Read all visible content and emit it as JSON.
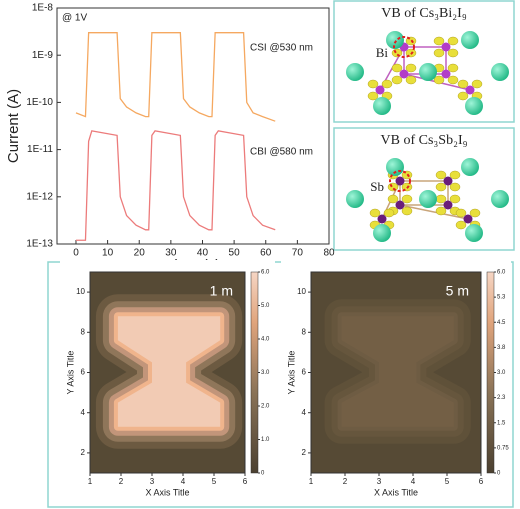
{
  "chart_data": [
    {
      "type": "line",
      "xlabel": "Time (s)",
      "ylabel": "Current (A)",
      "log_y": true,
      "annotations": [
        "@ 1V"
      ],
      "x": [
        0,
        3,
        4,
        5,
        13,
        14,
        16,
        19,
        22,
        23,
        24,
        25,
        33,
        34,
        36,
        39,
        42,
        43,
        44,
        45,
        53,
        54,
        56,
        59,
        63
      ],
      "series": [
        {
          "name": "CSI @530 nm",
          "color": "#f5a860",
          "values": [
            6e-11,
            5e-11,
            3e-09,
            3e-09,
            3e-09,
            1.2e-10,
            8e-11,
            6e-11,
            5e-11,
            5e-11,
            3e-09,
            3e-09,
            3e-09,
            1.2e-10,
            8e-11,
            6e-11,
            5e-11,
            5e-11,
            3e-09,
            3e-09,
            3e-09,
            1e-10,
            6e-11,
            5e-11,
            4e-11
          ]
        },
        {
          "name": "CBI @580 nm",
          "color": "#ec7b7b",
          "values": [
            1.2e-13,
            1.2e-13,
            1.5e-11,
            2.5e-11,
            2e-11,
            1e-12,
            4e-13,
            2.5e-13,
            2e-13,
            2e-13,
            2e-11,
            2.5e-11,
            2e-11,
            1e-12,
            4e-13,
            2.5e-13,
            2e-13,
            2e-13,
            2e-11,
            2.5e-11,
            2e-11,
            1e-12,
            4e-13,
            2.5e-13,
            2e-13
          ]
        }
      ],
      "xlim": [
        -6,
        80
      ],
      "xticks": [
        0,
        10,
        20,
        30,
        40,
        50,
        60,
        70,
        80
      ],
      "ylim": [
        1e-13,
        1e-08
      ],
      "yticks": [
        {
          "value": 1e-13,
          "label": "1E-13"
        },
        {
          "value": 1e-12,
          "label": "1E-12"
        },
        {
          "value": 1e-11,
          "label": "1E-11"
        },
        {
          "value": 1e-10,
          "label": "1E-10"
        },
        {
          "value": 1e-09,
          "label": "1E-9"
        },
        {
          "value": 1e-08,
          "label": "1E-8"
        }
      ]
    },
    {
      "type": "contour",
      "title": "1 m",
      "xlabel": "X Axis Title",
      "ylabel": "Y Axis Title",
      "xlim": [
        1,
        6
      ],
      "xticks": [
        1,
        2,
        3,
        4,
        5,
        6
      ],
      "ylim": [
        1,
        11
      ],
      "yticks": [
        2,
        4,
        6,
        8,
        10
      ],
      "clim": [
        0,
        6
      ],
      "cticks": [
        0,
        {
          "value": 1,
          "label": "1.0"
        },
        {
          "value": 2,
          "label": "2.0"
        },
        {
          "value": 3,
          "label": "3.0"
        },
        {
          "value": 4,
          "label": "4.0"
        },
        {
          "value": 5,
          "label": "5.0"
        },
        {
          "value": 6,
          "label": "6.0"
        }
      ]
    },
    {
      "type": "contour",
      "title": "5 m",
      "xlabel": "X Axis Title",
      "ylabel": "Y Axis Title",
      "xlim": [
        1,
        6
      ],
      "xticks": [
        1,
        2,
        3,
        4,
        5,
        6
      ],
      "ylim": [
        1,
        11
      ],
      "yticks": [
        2,
        4,
        6,
        8,
        10
      ],
      "clim": [
        0,
        6
      ],
      "cticks": [
        0,
        0.75,
        1.5,
        {
          "value": 2.25,
          "label": "2.3"
        },
        {
          "value": 3,
          "label": "3.0"
        },
        {
          "value": 3.75,
          "label": "3.8"
        },
        4.5,
        {
          "value": 5.25,
          "label": "5.3"
        },
        {
          "value": 6,
          "label": "6.0"
        }
      ]
    }
  ],
  "panels": [
    {
      "title": "VB of Cs₃Bi₂I₉",
      "label": "Bi"
    },
    {
      "title": "VB of Cs₃Sb₂I₉",
      "label": "Sb"
    }
  ]
}
